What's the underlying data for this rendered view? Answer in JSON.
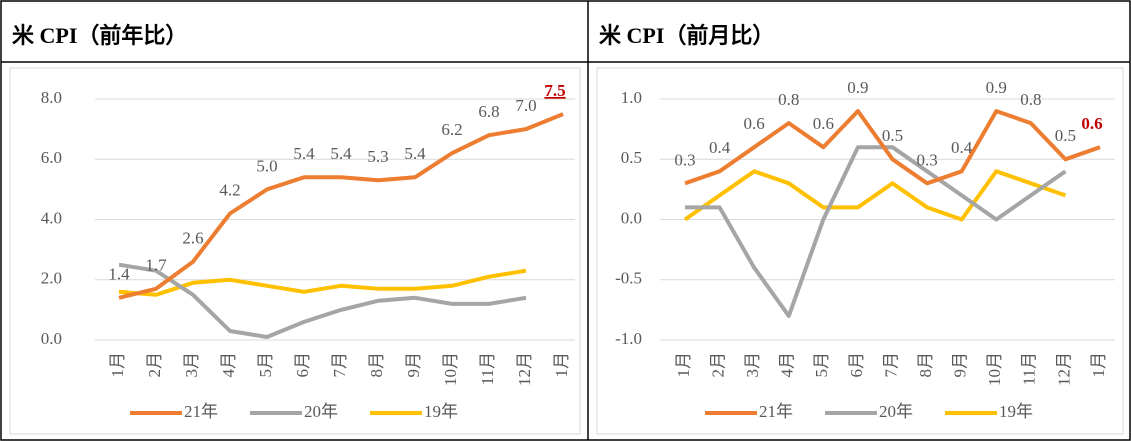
{
  "chart_data": [
    {
      "type": "line",
      "title": "米 CPI（前年比）",
      "categories": [
        "1月",
        "2月",
        "3月",
        "4月",
        "5月",
        "6月",
        "7月",
        "8月",
        "9月",
        "10月",
        "11月",
        "12月",
        "1月"
      ],
      "ylim": [
        0,
        8
      ],
      "yticks": [
        {
          "value": 0,
          "label": "0.0"
        },
        {
          "value": 2,
          "label": "2.0"
        },
        {
          "value": 4,
          "label": "4.0"
        },
        {
          "value": 6,
          "label": "6.0"
        },
        {
          "value": 8,
          "label": "8.0"
        }
      ],
      "grid": true,
      "legend": "bottom",
      "series": [
        {
          "name": "21年",
          "color": "#ED7D31",
          "values": [
            1.4,
            1.7,
            2.6,
            4.2,
            5.0,
            5.4,
            5.4,
            5.3,
            5.4,
            6.2,
            6.8,
            7.0,
            7.5
          ],
          "value_labels": [
            "1.4",
            "1.7",
            "2.6",
            "4.2",
            "5.0",
            "5.4",
            "5.4",
            "5.3",
            "5.4",
            "6.2",
            "6.8",
            "7.0",
            "7.5"
          ]
        },
        {
          "name": "20年",
          "color": "#A5A5A5",
          "values": [
            2.5,
            2.3,
            1.5,
            0.3,
            0.1,
            0.6,
            1.0,
            1.3,
            1.4,
            1.2,
            1.2,
            1.4,
            null
          ]
        },
        {
          "name": "19年",
          "color": "#FFC000",
          "values": [
            1.6,
            1.5,
            1.9,
            2.0,
            1.8,
            1.6,
            1.8,
            1.7,
            1.7,
            1.8,
            2.1,
            2.3,
            null
          ]
        }
      ]
    },
    {
      "type": "line",
      "title": "米 CPI（前月比）",
      "categories": [
        "1月",
        "2月",
        "3月",
        "4月",
        "5月",
        "6月",
        "7月",
        "8月",
        "9月",
        "10月",
        "11月",
        "12月",
        "1月"
      ],
      "ylim": [
        -1,
        1
      ],
      "yticks": [
        {
          "value": -1,
          "label": "-1.0"
        },
        {
          "value": -0.5,
          "label": "-0.5"
        },
        {
          "value": 0,
          "label": "0.0"
        },
        {
          "value": 0.5,
          "label": "0.5"
        },
        {
          "value": 1,
          "label": "1.0"
        }
      ],
      "grid": true,
      "legend": "bottom",
      "series": [
        {
          "name": "21年",
          "color": "#ED7D31",
          "values": [
            0.3,
            0.4,
            0.6,
            0.8,
            0.6,
            0.9,
            0.5,
            0.3,
            0.4,
            0.9,
            0.8,
            0.5,
            0.6
          ],
          "value_labels": [
            "0.3",
            "0.4",
            "0.6",
            "0.8",
            "0.6",
            "0.9",
            "0.5",
            "0.3",
            "0.4",
            "0.9",
            "0.8",
            "0.5",
            "0.6"
          ]
        },
        {
          "name": "20年",
          "color": "#A5A5A5",
          "values": [
            0.1,
            0.1,
            -0.4,
            -0.8,
            0.0,
            0.6,
            0.6,
            0.4,
            0.2,
            0.0,
            0.2,
            0.4,
            null
          ]
        },
        {
          "name": "19年",
          "color": "#FFC000",
          "values": [
            0.0,
            0.2,
            0.4,
            0.3,
            0.1,
            0.1,
            0.3,
            0.1,
            0.0,
            0.4,
            0.3,
            0.2,
            null
          ]
        }
      ]
    }
  ]
}
